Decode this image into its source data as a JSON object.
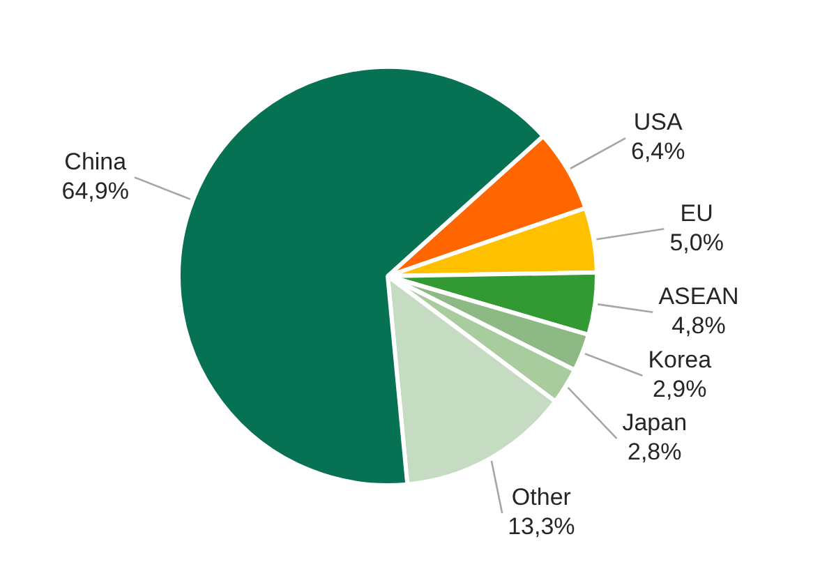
{
  "chart_data": {
    "type": "pie",
    "categories": [
      "USA",
      "EU",
      "ASEAN",
      "Korea",
      "Japan",
      "Other",
      "China"
    ],
    "values": [
      6.4,
      5.0,
      4.8,
      2.9,
      2.8,
      13.3,
      64.9
    ],
    "value_labels": [
      "6,4%",
      "5,0%",
      "4,8%",
      "2,9%",
      "2,8%",
      "13,3%",
      "64,9%"
    ],
    "colors": [
      "#ff6600",
      "#ffc000",
      "#339933",
      "#8dba84",
      "#a9cc9f",
      "#c6dcc2",
      "#067153"
    ],
    "legend": false
  }
}
